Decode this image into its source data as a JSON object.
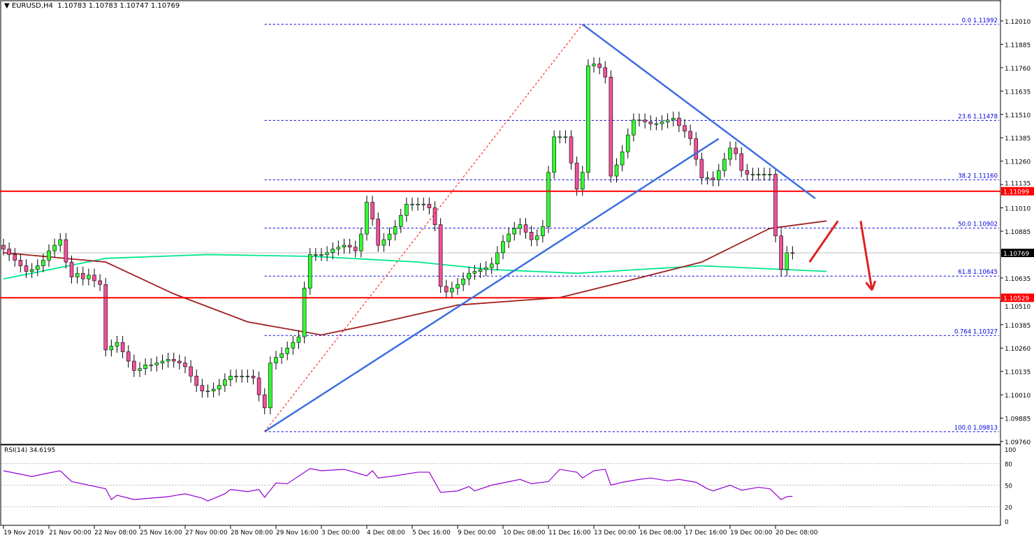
{
  "header": {
    "symbol": "EURUSD,H4",
    "ohlc": "1.10783 1.10783 1.10747 1.10769"
  },
  "rsi_label": "RSI(14) 34.6195",
  "chart_data": {
    "type": "candlestick",
    "price_axis": {
      "min": 1.0976,
      "max": 1.1201,
      "ticks": [
        "1.12010",
        "1.11885",
        "1.11760",
        "1.11635",
        "1.11510",
        "1.11385",
        "1.11260",
        "1.11135",
        "1.11010",
        "1.10885",
        "1.10635",
        "1.10510",
        "1.10385",
        "1.10260",
        "1.10135",
        "1.10010",
        "1.09885",
        "1.09760"
      ]
    },
    "time_labels": [
      {
        "bar": 0,
        "label": "19 Nov 2019"
      },
      {
        "bar": 8,
        "label": "21 Nov 00:00"
      },
      {
        "bar": 16,
        "label": "22 Nov 08:00"
      },
      {
        "bar": 24,
        "label": "25 Nov 16:00"
      },
      {
        "bar": 32,
        "label": "27 Nov 00:00"
      },
      {
        "bar": 40,
        "label": "28 Nov 08:00"
      },
      {
        "bar": 48,
        "label": "29 Nov 16:00"
      },
      {
        "bar": 56,
        "label": "3 Dec 00:00"
      },
      {
        "bar": 64,
        "label": "4 Dec 08:00"
      },
      {
        "bar": 72,
        "label": "5 Dec 16:00"
      },
      {
        "bar": 80,
        "label": "9 Dec 00:00"
      },
      {
        "bar": 88,
        "label": "10 Dec 08:00"
      },
      {
        "bar": 96,
        "label": "11 Dec 16:00"
      },
      {
        "bar": 104,
        "label": "13 Dec 00:00"
      },
      {
        "bar": 112,
        "label": "16 Dec 08:00"
      },
      {
        "bar": 120,
        "label": "17 Dec 16:00"
      },
      {
        "bar": 128,
        "label": "19 Dec 00:00"
      },
      {
        "bar": 136,
        "label": "20 Dec 08:00"
      }
    ],
    "closes": [
      1.1079,
      1.1076,
      1.1073,
      1.107,
      1.1067,
      1.1068,
      1.107,
      1.1073,
      1.1078,
      1.1081,
      1.1084,
      1.1072,
      1.1064,
      1.1066,
      1.1063,
      1.1065,
      1.1062,
      1.106,
      1.1025,
      1.1027,
      1.1029,
      1.1024,
      1.1019,
      1.1014,
      1.1015,
      1.1017,
      1.1017,
      1.1018,
      1.1019,
      1.102,
      1.1019,
      1.1018,
      1.1016,
      1.1011,
      1.1006,
      1.1003,
      1.1003,
      1.1004,
      1.1006,
      1.1009,
      1.1011,
      1.1011,
      1.1011,
      1.1011,
      1.101,
      1.1001,
      1.0994,
      1.1018,
      1.1021,
      1.1023,
      1.1026,
      1.1029,
      1.1032,
      1.1058,
      1.1076,
      1.1076,
      1.1076,
      1.1077,
      1.1079,
      1.108,
      1.1081,
      1.108,
      1.1078,
      1.1087,
      1.1104,
      1.1095,
      1.1081,
      1.1084,
      1.1087,
      1.1091,
      1.1097,
      1.1103,
      1.1103,
      1.1103,
      1.1103,
      1.1101,
      1.1092,
      1.1059,
      1.1056,
      1.1058,
      1.106,
      1.1063,
      1.1066,
      1.1067,
      1.1068,
      1.1069,
      1.1071,
      1.1077,
      1.1083,
      1.1087,
      1.109,
      1.1092,
      1.1088,
      1.1084,
      1.1086,
      1.1091,
      1.112,
      1.1139,
      1.1139,
      1.1139,
      1.1125,
      1.1111,
      1.112,
      1.1177,
      1.1178,
      1.1176,
      1.1171,
      1.1118,
      1.1124,
      1.1131,
      1.114,
      1.1148,
      1.1148,
      1.1147,
      1.1146,
      1.1146,
      1.1147,
      1.1148,
      1.1149,
      1.1145,
      1.1142,
      1.1138,
      1.1127,
      1.1117,
      1.1117,
      1.1116,
      1.1121,
      1.1127,
      1.1133,
      1.113,
      1.1121,
      1.1119,
      1.1119,
      1.1119,
      1.1119,
      1.1119,
      1.1086,
      1.1068,
      1.1077,
      1.10769
    ],
    "colors": {
      "bull": "#32ff32",
      "bear": "#f0509a",
      "wick": "#000000",
      "ma_fast": "#00e68c",
      "ma_slow": "#a01e1e",
      "trendline": "#3c6ee0",
      "fib": "#0000dd",
      "level": "#ff0000",
      "rsi": "#9400d3"
    },
    "ma_fast": [
      [
        0,
        1.1063
      ],
      [
        18,
        1.1074
      ],
      [
        36,
        1.1076
      ],
      [
        55,
        1.1075
      ],
      [
        73,
        1.1072
      ],
      [
        86,
        1.1068
      ],
      [
        101,
        1.1066
      ],
      [
        123,
        1.107
      ],
      [
        145,
        1.1067
      ]
    ],
    "ma_slow": [
      [
        0,
        1.1077
      ],
      [
        18,
        1.1072
      ],
      [
        30,
        1.1055
      ],
      [
        43,
        1.104
      ],
      [
        56,
        1.1033
      ],
      [
        67,
        1.104
      ],
      [
        80,
        1.1049
      ],
      [
        98,
        1.1053
      ],
      [
        110,
        1.1062
      ],
      [
        123,
        1.1072
      ],
      [
        135,
        1.109
      ],
      [
        145,
        1.1094
      ]
    ],
    "fibonacci": {
      "start_bar": 46,
      "levels": [
        {
          "label": "0.0 1.11992",
          "price": 1.11992
        },
        {
          "label": "23.6 1.11478",
          "price": 1.11478
        },
        {
          "label": "38.2 1.11160",
          "price": 1.1116
        },
        {
          "label": "50.0 1.10902",
          "price": 1.10902
        },
        {
          "label": "61.8 1.10645",
          "price": 1.10645
        },
        {
          "label": "0.764 1.10327",
          "price": 1.10327
        },
        {
          "label": "100.0 1.09813",
          "price": 1.09813
        }
      ]
    },
    "horizontal_levels": [
      {
        "label": "1.11099",
        "price": 1.11099
      },
      {
        "label": "1.10529",
        "price": 1.10529
      }
    ],
    "current_price": {
      "label": "1.10769",
      "price": 1.10769
    },
    "trendlines": [
      {
        "kind": "support",
        "from": [
          46,
          1.09813
        ],
        "to": [
          126,
          1.1138
        ]
      },
      {
        "kind": "resistance",
        "from": [
          102,
          1.11992
        ],
        "to": [
          143,
          1.1106
        ]
      },
      {
        "kind": "fib-diagonal",
        "from": [
          46,
          1.09813
        ],
        "to": [
          102,
          1.11992
        ]
      }
    ],
    "arrows": [
      {
        "from": [
          142,
          1.1072
        ],
        "to": [
          147,
          1.1094
        ]
      },
      {
        "from": [
          151,
          1.1094
        ],
        "to": [
          153,
          1.1057
        ],
        "head": true
      }
    ],
    "rsi": {
      "period": 14,
      "value": 34.6195,
      "levels": [
        80,
        50,
        20
      ],
      "ticks": [
        "100",
        "80",
        "50",
        "20",
        "0"
      ],
      "points": [
        [
          0,
          70
        ],
        [
          5,
          62
        ],
        [
          8,
          67
        ],
        [
          10,
          70
        ],
        [
          12,
          55
        ],
        [
          18,
          45
        ],
        [
          19,
          30
        ],
        [
          20,
          36
        ],
        [
          23,
          30
        ],
        [
          29,
          34
        ],
        [
          32,
          38
        ],
        [
          35,
          32
        ],
        [
          36,
          28
        ],
        [
          39,
          38
        ],
        [
          40,
          44
        ],
        [
          43,
          41
        ],
        [
          45,
          44
        ],
        [
          46,
          33
        ],
        [
          48,
          53
        ],
        [
          50,
          52
        ],
        [
          54,
          73
        ],
        [
          56,
          70
        ],
        [
          60,
          72
        ],
        [
          64,
          63
        ],
        [
          65,
          70
        ],
        [
          66,
          60
        ],
        [
          69,
          63
        ],
        [
          73,
          68
        ],
        [
          75,
          68
        ],
        [
          77,
          40
        ],
        [
          80,
          42
        ],
        [
          82,
          48
        ],
        [
          83,
          42
        ],
        [
          86,
          50
        ],
        [
          91,
          58
        ],
        [
          93,
          52
        ],
        [
          96,
          55
        ],
        [
          98,
          72
        ],
        [
          101,
          68
        ],
        [
          102,
          60
        ],
        [
          104,
          70
        ],
        [
          106,
          72
        ],
        [
          107,
          50
        ],
        [
          109,
          54
        ],
        [
          112,
          58
        ],
        [
          114,
          60
        ],
        [
          117,
          56
        ],
        [
          119,
          58
        ],
        [
          122,
          54
        ],
        [
          124,
          45
        ],
        [
          125,
          42
        ],
        [
          128,
          50
        ],
        [
          130,
          43
        ],
        [
          133,
          47
        ],
        [
          135,
          45
        ],
        [
          137,
          30
        ],
        [
          138,
          34
        ],
        [
          139,
          34.6
        ]
      ]
    }
  }
}
